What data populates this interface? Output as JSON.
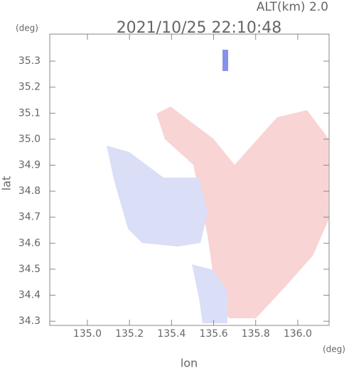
{
  "chart_data": {
    "type": "map",
    "title": "2021/10/25 22:10:48",
    "subtitle": "ALT(km) 2.0",
    "x_label": "lon",
    "y_label": "lat",
    "x_unit": "(deg)",
    "y_unit": "(deg)",
    "xlim": [
      134.821,
      136.149
    ],
    "ylim": [
      34.284,
      35.404
    ],
    "xticks": [
      {
        "value": 135.0,
        "label": "135.0"
      },
      {
        "value": 135.2,
        "label": "135.2"
      },
      {
        "value": 135.4,
        "label": "135.4"
      },
      {
        "value": 135.6,
        "label": "135.6"
      },
      {
        "value": 135.8,
        "label": "135.8"
      },
      {
        "value": 136.0,
        "label": "136.0"
      }
    ],
    "yticks": [
      34.3,
      34.4,
      34.5,
      34.6,
      34.7,
      34.8,
      34.9,
      {
        "value": 35.0,
        "label": "35.0"
      },
      35.1,
      35.2,
      35.3
    ]
  }
}
